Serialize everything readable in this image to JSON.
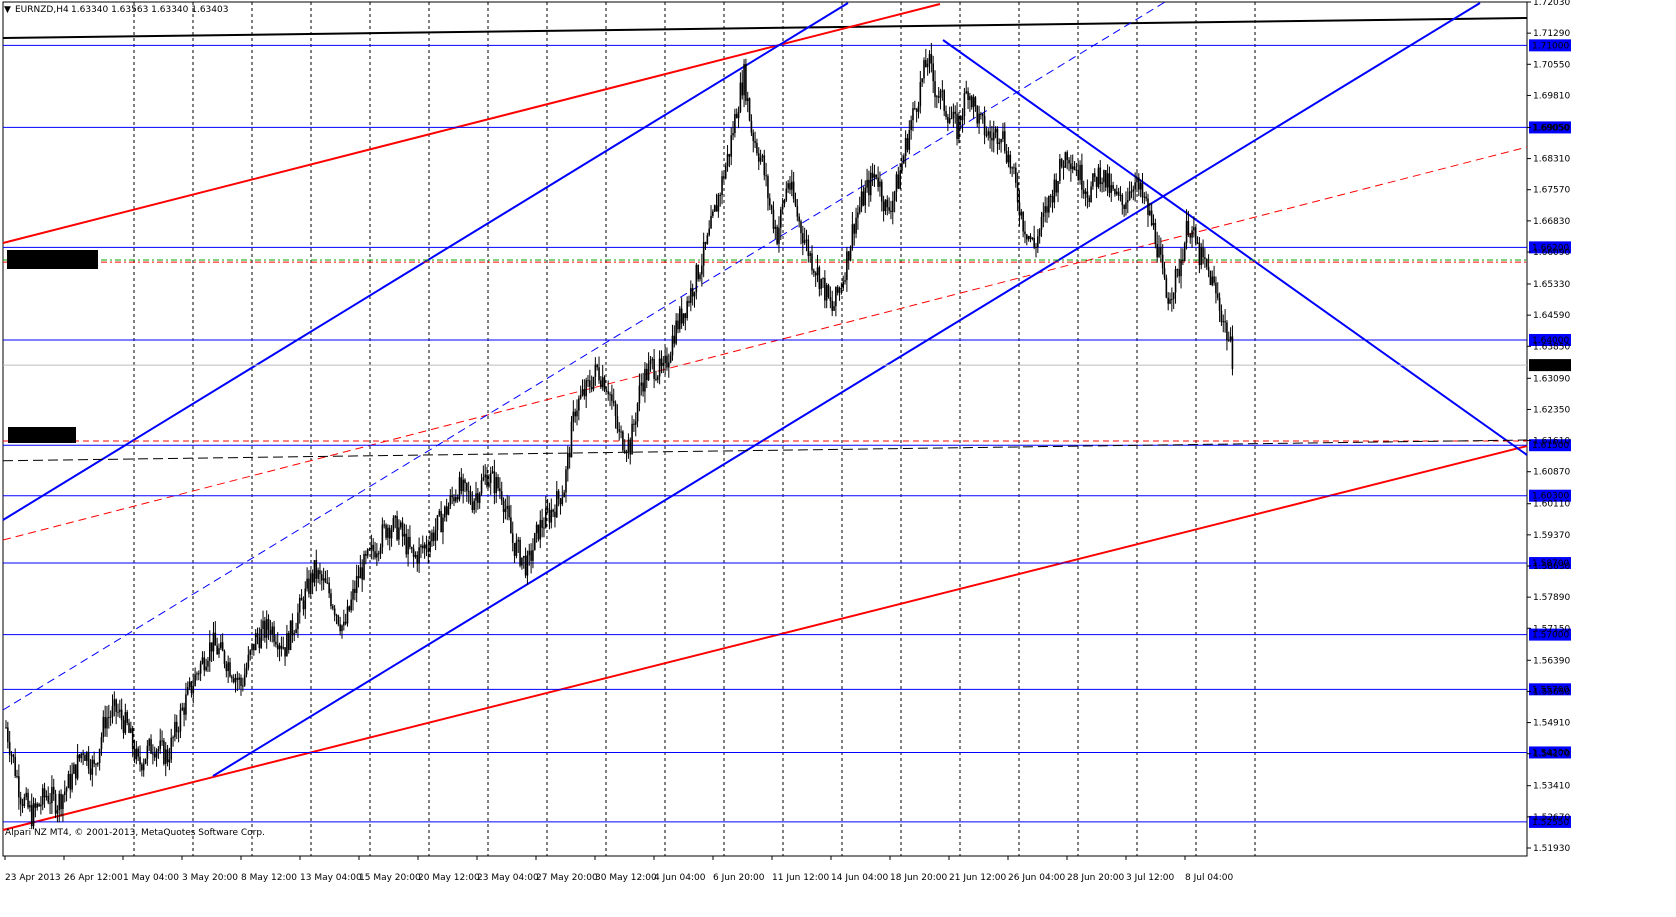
{
  "header": {
    "symbol": "EURNZD,H4",
    "ohlc": "1.63340 1.63563 1.63340 1.63403"
  },
  "copyright": "Alpari NZ MT4, © 2001-2013, MetaQuotes Software Corp.",
  "colors": {
    "background": "#ffffff",
    "level_line": "#0000ff",
    "channel_blue": "#0000ff",
    "channel_red": "#ff0000",
    "candle": "#000000",
    "label_bg": "#0000ff",
    "price_tag_bg": "#000000"
  },
  "chart_data": {
    "type": "candlestick",
    "symbol": "EURNZD",
    "timeframe": "H4",
    "ylim": [
      1.5174,
      1.7203
    ],
    "y_ticks": [
      "1.72030",
      "1.71290",
      "1.70550",
      "1.69810",
      "1.69050",
      "1.68310",
      "1.67570",
      "1.66830",
      "1.66090",
      "1.65330",
      "1.64590",
      "1.63850",
      "1.63090",
      "1.62350",
      "1.61610",
      "1.60870",
      "1.60110",
      "1.59370",
      "1.58630",
      "1.57890",
      "1.57150",
      "1.56390",
      "1.55650",
      "1.54910",
      "1.54170",
      "1.53410",
      "1.52670",
      "1.51930"
    ],
    "x_labels": [
      "23 Apr 2013",
      "26 Apr 12:00",
      "1 May 04:00",
      "3 May 20:00",
      "8 May 12:00",
      "13 May 04:00",
      "15 May 20:00",
      "20 May 12:00",
      "23 May 04:00",
      "27 May 20:00",
      "30 May 12:00",
      "4 Jun 04:00",
      "6 Jun 20:00",
      "11 Jun 12:00",
      "14 Jun 04:00",
      "18 Jun 20:00",
      "21 Jun 12:00",
      "26 Jun 04:00",
      "28 Jun 20:00",
      "3 Jul 12:00",
      "8 Jul 04:00"
    ],
    "levels": [
      "1.71000",
      "1.69050",
      "1.66200",
      "1.64000",
      "1.61500",
      "1.60300",
      "1.58700",
      "1.57000",
      "1.55700",
      "1.54200",
      "1.52550"
    ],
    "current_price": "1.63403",
    "path": [
      [
        0,
        1.548
      ],
      [
        8,
        1.532
      ],
      [
        14,
        1.527
      ],
      [
        22,
        1.532
      ],
      [
        28,
        1.53
      ],
      [
        36,
        1.536
      ],
      [
        42,
        1.543
      ],
      [
        48,
        1.538
      ],
      [
        54,
        1.55
      ],
      [
        60,
        1.552
      ],
      [
        66,
        1.548
      ],
      [
        72,
        1.539
      ],
      [
        80,
        1.544
      ],
      [
        88,
        1.541
      ],
      [
        96,
        1.552
      ],
      [
        104,
        1.561
      ],
      [
        112,
        1.568
      ],
      [
        120,
        1.564
      ],
      [
        128,
        1.558
      ],
      [
        136,
        1.569
      ],
      [
        144,
        1.572
      ],
      [
        152,
        1.567
      ],
      [
        160,
        1.576
      ],
      [
        168,
        1.585
      ],
      [
        176,
        1.58
      ],
      [
        184,
        1.571
      ],
      [
        192,
        1.584
      ],
      [
        200,
        1.59
      ],
      [
        208,
        1.596
      ],
      [
        214,
        1.595
      ],
      [
        222,
        1.588
      ],
      [
        230,
        1.592
      ],
      [
        238,
        1.598
      ],
      [
        246,
        1.605
      ],
      [
        254,
        1.602
      ],
      [
        262,
        1.608
      ],
      [
        270,
        1.604
      ],
      [
        276,
        1.592
      ],
      [
        284,
        1.586
      ],
      [
        290,
        1.595
      ],
      [
        298,
        1.6
      ],
      [
        304,
        1.605
      ],
      [
        310,
        1.624
      ],
      [
        316,
        1.628
      ],
      [
        322,
        1.633
      ],
      [
        328,
        1.629
      ],
      [
        334,
        1.617
      ],
      [
        340,
        1.615
      ],
      [
        346,
        1.63
      ],
      [
        352,
        1.634
      ],
      [
        358,
        1.632
      ],
      [
        364,
        1.642
      ],
      [
        370,
        1.648
      ],
      [
        376,
        1.655
      ],
      [
        382,
        1.663
      ],
      [
        388,
        1.674
      ],
      [
        394,
        1.685
      ],
      [
        398,
        1.695
      ],
      [
        402,
        1.703
      ],
      [
        406,
        1.69
      ],
      [
        412,
        1.682
      ],
      [
        416,
        1.672
      ],
      [
        420,
        1.665
      ],
      [
        426,
        1.678
      ],
      [
        432,
        1.668
      ],
      [
        438,
        1.66
      ],
      [
        444,
        1.654
      ],
      [
        450,
        1.647
      ],
      [
        456,
        1.655
      ],
      [
        462,
        1.668
      ],
      [
        468,
        1.675
      ],
      [
        474,
        1.68
      ],
      [
        480,
        1.67
      ],
      [
        486,
        1.678
      ],
      [
        492,
        1.69
      ],
      [
        498,
        1.7
      ],
      [
        502,
        1.707
      ],
      [
        506,
        1.7
      ],
      [
        512,
        1.695
      ],
      [
        518,
        1.69
      ],
      [
        524,
        1.7
      ],
      [
        530,
        1.692
      ],
      [
        536,
        1.688
      ],
      [
        542,
        1.69
      ],
      [
        548,
        1.68
      ],
      [
        554,
        1.668
      ],
      [
        560,
        1.662
      ],
      [
        566,
        1.67
      ],
      [
        572,
        1.678
      ],
      [
        578,
        1.685
      ],
      [
        584,
        1.68
      ],
      [
        590,
        1.675
      ],
      [
        596,
        1.68
      ],
      [
        602,
        1.675
      ],
      [
        608,
        1.672
      ],
      [
        614,
        1.678
      ],
      [
        620,
        1.673
      ],
      [
        626,
        1.665
      ],
      [
        632,
        1.65
      ],
      [
        638,
        1.655
      ],
      [
        644,
        1.668
      ],
      [
        650,
        1.66
      ],
      [
        656,
        1.655
      ],
      [
        661,
        1.648
      ],
      [
        666,
        1.64
      ],
      [
        669,
        1.634
      ]
    ]
  }
}
